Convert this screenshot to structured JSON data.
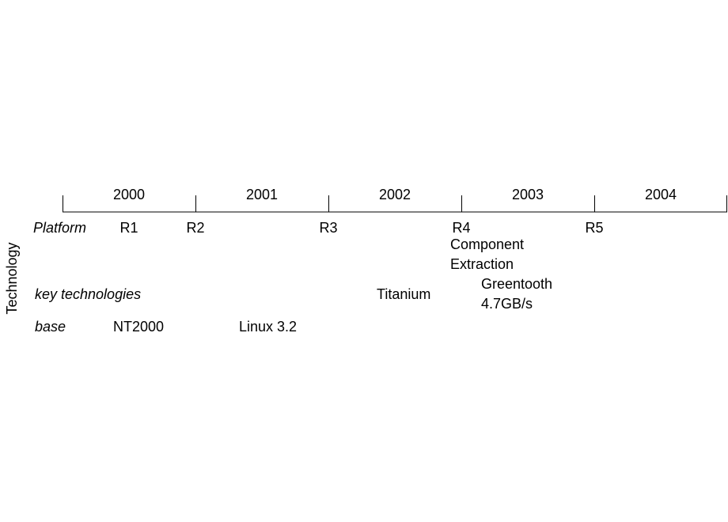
{
  "side_label": "Technology",
  "timeline": {
    "years": [
      "2000",
      "2001",
      "2002",
      "2003",
      "2004"
    ]
  },
  "rows": [
    {
      "label": "Platform",
      "items": [
        {
          "lines": [
            "R1"
          ]
        },
        {
          "lines": [
            "R2"
          ]
        },
        {
          "lines": [
            "R3"
          ]
        },
        {
          "lines": [
            "R4"
          ]
        },
        {
          "lines": [
            "R5"
          ]
        },
        {
          "lines": [
            "Component",
            "Extraction"
          ]
        }
      ]
    },
    {
      "label": "key technologies",
      "items": [
        {
          "lines": [
            "Titanium"
          ]
        },
        {
          "lines": [
            "Greentooth",
            "4.7GB/s"
          ]
        }
      ]
    },
    {
      "label": "base",
      "items": [
        {
          "lines": [
            "NT2000"
          ]
        },
        {
          "lines": [
            "Linux 3.2"
          ]
        }
      ]
    }
  ]
}
